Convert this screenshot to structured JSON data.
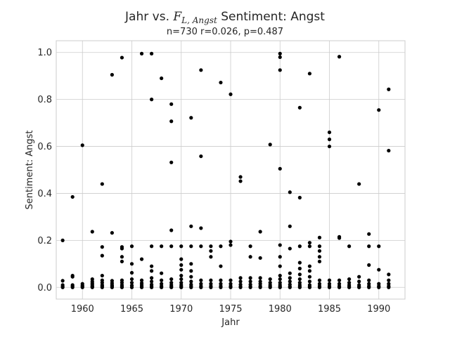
{
  "chart_data": {
    "type": "scatter",
    "title_prefix": "Jahr vs. ",
    "title_math_main": "F",
    "title_math_sub": "L, Angst",
    "title_suffix": " Sentiment: Angst",
    "subtitle": "n=730 r=0.026, p=0.487",
    "xlabel": "Jahr",
    "ylabel": "Sentiment: Angst",
    "xlim": [
      1957.35,
      1992.65
    ],
    "ylim": [
      -0.05,
      1.05
    ],
    "x_ticks": [
      1960,
      1965,
      1970,
      1975,
      1980,
      1985,
      1990
    ],
    "x_tick_labels": [
      "1960",
      "1965",
      "1970",
      "1975",
      "1980",
      "1985",
      "1990"
    ],
    "y_ticks": [
      0.0,
      0.2,
      0.4,
      0.6,
      0.8,
      1.0
    ],
    "y_tick_labels": [
      "0.0",
      "0.2",
      "0.4",
      "0.6",
      "0.8",
      "1.0"
    ],
    "grid": true,
    "point_color": "#000000",
    "points": [
      [
        1958,
        0.2
      ],
      [
        1958,
        0.028
      ],
      [
        1958,
        0.01
      ],
      [
        1958,
        0.003
      ],
      [
        1958,
        0.0
      ],
      [
        1959,
        0.385
      ],
      [
        1959,
        0.05
      ],
      [
        1959,
        0.045
      ],
      [
        1959,
        0.01
      ],
      [
        1959,
        0.005
      ],
      [
        1959,
        0.0
      ],
      [
        1960,
        0.605
      ],
      [
        1960,
        0.015
      ],
      [
        1960,
        0.008
      ],
      [
        1960,
        0.003
      ],
      [
        1960,
        0.0
      ],
      [
        1961,
        0.237
      ],
      [
        1961,
        0.035
      ],
      [
        1961,
        0.025
      ],
      [
        1961,
        0.018
      ],
      [
        1961,
        0.012
      ],
      [
        1961,
        0.006
      ],
      [
        1961,
        0.002
      ],
      [
        1961,
        0.0
      ],
      [
        1962,
        0.44
      ],
      [
        1962,
        0.172
      ],
      [
        1962,
        0.135
      ],
      [
        1962,
        0.05
      ],
      [
        1962,
        0.03
      ],
      [
        1962,
        0.02
      ],
      [
        1962,
        0.01
      ],
      [
        1962,
        0.005
      ],
      [
        1962,
        0.0
      ],
      [
        1963,
        0.905
      ],
      [
        1963,
        0.232
      ],
      [
        1963,
        0.028
      ],
      [
        1963,
        0.018
      ],
      [
        1963,
        0.01
      ],
      [
        1963,
        0.005
      ],
      [
        1963,
        0.0
      ],
      [
        1964,
        0.978
      ],
      [
        1964,
        0.172
      ],
      [
        1964,
        0.165
      ],
      [
        1964,
        0.13
      ],
      [
        1964,
        0.11
      ],
      [
        1964,
        0.03
      ],
      [
        1964,
        0.02
      ],
      [
        1964,
        0.01
      ],
      [
        1964,
        0.003
      ],
      [
        1964,
        0.0
      ],
      [
        1965,
        0.175
      ],
      [
        1965,
        0.1
      ],
      [
        1965,
        0.062
      ],
      [
        1965,
        0.035
      ],
      [
        1965,
        0.02
      ],
      [
        1965,
        0.008
      ],
      [
        1965,
        0.0
      ],
      [
        1966,
        0.995
      ],
      [
        1966,
        0.12
      ],
      [
        1966,
        0.03
      ],
      [
        1966,
        0.018
      ],
      [
        1966,
        0.01
      ],
      [
        1966,
        0.003
      ],
      [
        1966,
        0.0
      ],
      [
        1967,
        0.995
      ],
      [
        1967,
        0.8
      ],
      [
        1967,
        0.175
      ],
      [
        1967,
        0.09
      ],
      [
        1967,
        0.07
      ],
      [
        1967,
        0.04
      ],
      [
        1967,
        0.025
      ],
      [
        1967,
        0.012
      ],
      [
        1967,
        0.005
      ],
      [
        1967,
        0.0
      ],
      [
        1968,
        0.89
      ],
      [
        1968,
        0.175
      ],
      [
        1968,
        0.06
      ],
      [
        1968,
        0.03
      ],
      [
        1968,
        0.015
      ],
      [
        1968,
        0.005
      ],
      [
        1968,
        0.0
      ],
      [
        1969,
        0.78
      ],
      [
        1969,
        0.707
      ],
      [
        1969,
        0.532
      ],
      [
        1969,
        0.243
      ],
      [
        1969,
        0.175
      ],
      [
        1969,
        0.035
      ],
      [
        1969,
        0.02
      ],
      [
        1969,
        0.01
      ],
      [
        1969,
        0.003
      ],
      [
        1969,
        0.0
      ],
      [
        1970,
        0.175
      ],
      [
        1970,
        0.12
      ],
      [
        1970,
        0.095
      ],
      [
        1970,
        0.075
      ],
      [
        1970,
        0.05
      ],
      [
        1970,
        0.035
      ],
      [
        1970,
        0.02
      ],
      [
        1970,
        0.01
      ],
      [
        1970,
        0.003
      ],
      [
        1970,
        0.0
      ],
      [
        1971,
        0.722
      ],
      [
        1971,
        0.26
      ],
      [
        1971,
        0.175
      ],
      [
        1971,
        0.1
      ],
      [
        1971,
        0.07
      ],
      [
        1971,
        0.045
      ],
      [
        1971,
        0.025
      ],
      [
        1971,
        0.012
      ],
      [
        1971,
        0.005
      ],
      [
        1971,
        0.0
      ],
      [
        1972,
        0.925
      ],
      [
        1972,
        0.558
      ],
      [
        1972,
        0.252
      ],
      [
        1972,
        0.175
      ],
      [
        1972,
        0.03
      ],
      [
        1972,
        0.015
      ],
      [
        1972,
        0.005
      ],
      [
        1972,
        0.0
      ],
      [
        1973,
        0.175
      ],
      [
        1973,
        0.155
      ],
      [
        1973,
        0.13
      ],
      [
        1973,
        0.03
      ],
      [
        1973,
        0.015
      ],
      [
        1973,
        0.005
      ],
      [
        1973,
        0.0
      ],
      [
        1974,
        0.872
      ],
      [
        1974,
        0.175
      ],
      [
        1974,
        0.09
      ],
      [
        1974,
        0.03
      ],
      [
        1974,
        0.015
      ],
      [
        1974,
        0.005
      ],
      [
        1974,
        0.0
      ],
      [
        1975,
        0.822
      ],
      [
        1975,
        0.195
      ],
      [
        1975,
        0.18
      ],
      [
        1975,
        0.03
      ],
      [
        1975,
        0.015
      ],
      [
        1975,
        0.005
      ],
      [
        1975,
        0.0
      ],
      [
        1976,
        0.47
      ],
      [
        1976,
        0.452
      ],
      [
        1976,
        0.04
      ],
      [
        1976,
        0.025
      ],
      [
        1976,
        0.012
      ],
      [
        1976,
        0.003
      ],
      [
        1976,
        0.0
      ],
      [
        1977,
        0.175
      ],
      [
        1977,
        0.13
      ],
      [
        1977,
        0.04
      ],
      [
        1977,
        0.025
      ],
      [
        1977,
        0.012
      ],
      [
        1977,
        0.003
      ],
      [
        1977,
        0.0
      ],
      [
        1978,
        0.237
      ],
      [
        1978,
        0.125
      ],
      [
        1978,
        0.04
      ],
      [
        1978,
        0.025
      ],
      [
        1978,
        0.015
      ],
      [
        1978,
        0.005
      ],
      [
        1978,
        0.0
      ],
      [
        1979,
        0.608
      ],
      [
        1979,
        0.035
      ],
      [
        1979,
        0.02
      ],
      [
        1979,
        0.01
      ],
      [
        1979,
        0.003
      ],
      [
        1979,
        0.0
      ],
      [
        1980,
        0.995
      ],
      [
        1980,
        0.98
      ],
      [
        1980,
        0.925
      ],
      [
        1980,
        0.505
      ],
      [
        1980,
        0.18
      ],
      [
        1980,
        0.13
      ],
      [
        1980,
        0.09
      ],
      [
        1980,
        0.05
      ],
      [
        1980,
        0.035
      ],
      [
        1980,
        0.02
      ],
      [
        1980,
        0.01
      ],
      [
        1980,
        0.003
      ],
      [
        1980,
        0.0
      ],
      [
        1981,
        0.405
      ],
      [
        1981,
        0.26
      ],
      [
        1981,
        0.165
      ],
      [
        1981,
        0.06
      ],
      [
        1981,
        0.04
      ],
      [
        1981,
        0.025
      ],
      [
        1981,
        0.012
      ],
      [
        1981,
        0.003
      ],
      [
        1981,
        0.0
      ],
      [
        1982,
        0.765
      ],
      [
        1982,
        0.382
      ],
      [
        1982,
        0.175
      ],
      [
        1982,
        0.105
      ],
      [
        1982,
        0.08
      ],
      [
        1982,
        0.055
      ],
      [
        1982,
        0.035
      ],
      [
        1982,
        0.02
      ],
      [
        1982,
        0.01
      ],
      [
        1982,
        0.003
      ],
      [
        1982,
        0.0
      ],
      [
        1983,
        0.91
      ],
      [
        1983,
        0.19
      ],
      [
        1983,
        0.175
      ],
      [
        1983,
        0.09
      ],
      [
        1983,
        0.07
      ],
      [
        1983,
        0.045
      ],
      [
        1983,
        0.025
      ],
      [
        1983,
        0.01
      ],
      [
        1983,
        0.003
      ],
      [
        1983,
        0.0
      ],
      [
        1984,
        0.212
      ],
      [
        1984,
        0.175
      ],
      [
        1984,
        0.155
      ],
      [
        1984,
        0.13
      ],
      [
        1984,
        0.11
      ],
      [
        1984,
        0.03
      ],
      [
        1984,
        0.015
      ],
      [
        1984,
        0.005
      ],
      [
        1984,
        0.0
      ],
      [
        1985,
        0.66
      ],
      [
        1985,
        0.63
      ],
      [
        1985,
        0.6
      ],
      [
        1985,
        0.03
      ],
      [
        1985,
        0.015
      ],
      [
        1985,
        0.005
      ],
      [
        1985,
        0.0
      ],
      [
        1986,
        0.982
      ],
      [
        1986,
        0.215
      ],
      [
        1986,
        0.21
      ],
      [
        1986,
        0.03
      ],
      [
        1986,
        0.015
      ],
      [
        1986,
        0.005
      ],
      [
        1986,
        0.0
      ],
      [
        1987,
        0.175
      ],
      [
        1987,
        0.035
      ],
      [
        1987,
        0.02
      ],
      [
        1987,
        0.01
      ],
      [
        1987,
        0.003
      ],
      [
        1987,
        0.0
      ],
      [
        1988,
        0.44
      ],
      [
        1988,
        0.045
      ],
      [
        1988,
        0.025
      ],
      [
        1988,
        0.01
      ],
      [
        1988,
        0.003
      ],
      [
        1988,
        0.0
      ],
      [
        1989,
        0.227
      ],
      [
        1989,
        0.175
      ],
      [
        1989,
        0.095
      ],
      [
        1989,
        0.03
      ],
      [
        1989,
        0.015
      ],
      [
        1989,
        0.005
      ],
      [
        1989,
        0.0
      ],
      [
        1990,
        0.755
      ],
      [
        1990,
        0.175
      ],
      [
        1990,
        0.075
      ],
      [
        1990,
        0.015
      ],
      [
        1990,
        0.005
      ],
      [
        1990,
        0.0
      ],
      [
        1991,
        0.843
      ],
      [
        1991,
        0.582
      ],
      [
        1991,
        0.055
      ],
      [
        1991,
        0.03
      ],
      [
        1991,
        0.015
      ],
      [
        1991,
        0.005
      ],
      [
        1991,
        0.0
      ]
    ]
  }
}
